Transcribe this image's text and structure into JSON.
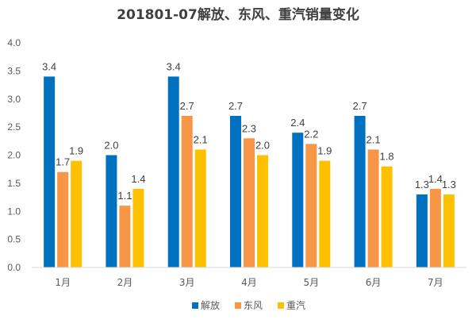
{
  "chart_data": {
    "type": "bar",
    "title": "201801-07解放、东风、重汽销量变化",
    "categories": [
      "1月",
      "2月",
      "3月",
      "4月",
      "5月",
      "6月",
      "7月"
    ],
    "series": [
      {
        "name": "解放",
        "values": [
          3.4,
          2.0,
          3.4,
          2.7,
          2.4,
          2.7,
          1.3
        ],
        "labels": [
          "3.4",
          "2.0",
          "3.4",
          "2.7",
          "2.4",
          "2.7",
          "1.3"
        ],
        "color": "#0070C0"
      },
      {
        "name": "东风",
        "values": [
          1.7,
          1.1,
          2.7,
          2.3,
          2.2,
          2.1,
          1.4
        ],
        "labels": [
          "1.7",
          "1.1",
          "2.7",
          "2.3",
          "2.2",
          "2.1",
          "1.4"
        ],
        "color": "#F79646"
      },
      {
        "name": "重汽",
        "values": [
          1.9,
          1.4,
          2.1,
          2.0,
          1.9,
          1.8,
          1.3
        ],
        "labels": [
          "1.9",
          "1.4",
          "2.1",
          "2.0",
          "1.9",
          "1.8",
          "1.3"
        ],
        "color": "#FFC000"
      }
    ],
    "yticks": [
      "0.0",
      "0.5",
      "1.0",
      "1.5",
      "2.0",
      "2.5",
      "3.0",
      "3.5",
      "4.0"
    ],
    "ylim": [
      0,
      4
    ],
    "grid": false,
    "legend": "bottom"
  }
}
